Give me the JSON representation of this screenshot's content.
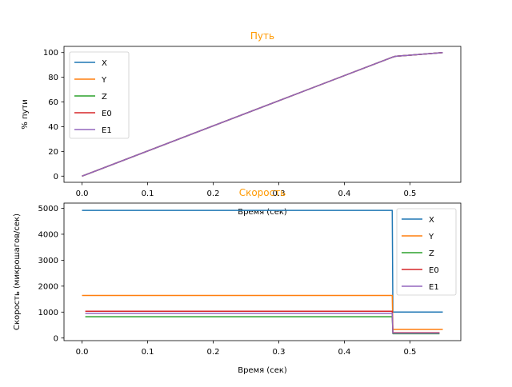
{
  "chart_data": [
    {
      "type": "line",
      "title": "Путь",
      "title_color": "#ff9900",
      "xlabel": "Время (сек)",
      "ylabel": "% пути",
      "xlim": [
        -0.0275,
        0.5775
      ],
      "ylim": [
        -5,
        105
      ],
      "xticks": [
        0.0,
        0.1,
        0.2,
        0.3,
        0.4,
        0.5
      ],
      "xtick_labels": [
        "0.0",
        "0.1",
        "0.2",
        "0.3",
        "0.4",
        "0.5"
      ],
      "yticks": [
        0,
        20,
        40,
        60,
        80,
        100
      ],
      "ytick_labels": [
        "0",
        "20",
        "40",
        "60",
        "80",
        "100"
      ],
      "grid": false,
      "legend_position": "upper-left",
      "series": [
        {
          "name": "X",
          "color": "#1f77b4",
          "x": [
            0.0,
            0.472,
            0.478,
            0.55
          ],
          "y": [
            0,
            96,
            97,
            100
          ]
        },
        {
          "name": "Y",
          "color": "#ff7f0e",
          "x": [
            0.0,
            0.472,
            0.478,
            0.55
          ],
          "y": [
            0,
            96,
            97,
            100
          ]
        },
        {
          "name": "Z",
          "color": "#2ca02c",
          "x": [
            0.0,
            0.472,
            0.478,
            0.55
          ],
          "y": [
            0,
            96,
            97,
            100
          ]
        },
        {
          "name": "E0",
          "color": "#d62728",
          "x": [
            0.0,
            0.472,
            0.478,
            0.55
          ],
          "y": [
            0,
            96,
            97,
            100
          ]
        },
        {
          "name": "E1",
          "color": "#9467bd",
          "x": [
            0.0,
            0.472,
            0.478,
            0.55
          ],
          "y": [
            0,
            96,
            97,
            100
          ]
        }
      ]
    },
    {
      "type": "line",
      "title": "Скорость",
      "title_color": "#ff9900",
      "xlabel": "Время (сек)",
      "ylabel": "Скорость (микрошагов/сек)",
      "xlim": [
        -0.0275,
        0.5775
      ],
      "ylim": [
        -100,
        5200
      ],
      "xticks": [
        0.0,
        0.1,
        0.2,
        0.3,
        0.4,
        0.5
      ],
      "xtick_labels": [
        "0.0",
        "0.1",
        "0.2",
        "0.3",
        "0.4",
        "0.5"
      ],
      "yticks": [
        0,
        1000,
        2000,
        3000,
        4000,
        5000
      ],
      "ytick_labels": [
        "0",
        "1000",
        "2000",
        "3000",
        "4000",
        "5000"
      ],
      "grid": false,
      "legend_position": "upper-right",
      "series": [
        {
          "name": "X",
          "color": "#1f77b4",
          "x": [
            0.0,
            0.473,
            0.474,
            0.55
          ],
          "y": [
            4920,
            4920,
            1000,
            1000
          ]
        },
        {
          "name": "Y",
          "color": "#ff7f0e",
          "x": [
            0.0,
            0.473,
            0.474,
            0.55
          ],
          "y": [
            1640,
            1640,
            330,
            330
          ]
        },
        {
          "name": "Z",
          "color": "#2ca02c",
          "x": [
            0.005,
            0.473,
            0.474,
            0.545
          ],
          "y": [
            820,
            820,
            165,
            165
          ]
        },
        {
          "name": "E0",
          "color": "#d62728",
          "x": [
            0.005,
            0.473,
            0.474,
            0.545
          ],
          "y": [
            1030,
            1030,
            205,
            205
          ]
        },
        {
          "name": "E1",
          "color": "#9467bd",
          "x": [
            0.005,
            0.473,
            0.474,
            0.545
          ],
          "y": [
            950,
            950,
            190,
            190
          ]
        }
      ]
    }
  ]
}
